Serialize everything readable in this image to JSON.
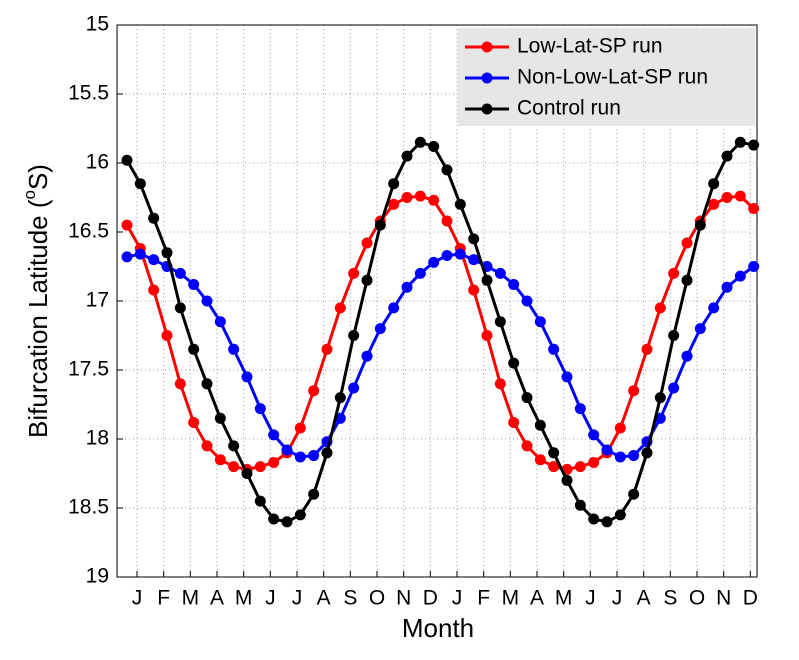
{
  "chart_data": {
    "type": "line",
    "ylabel": [
      "Bifurcation Latitude (",
      "o",
      "S)"
    ],
    "xlabel": "Month",
    "x": [
      0.375,
      0.875,
      1.375,
      1.875,
      2.375,
      2.875,
      3.375,
      3.875,
      4.375,
      4.875,
      5.375,
      5.875,
      6.375,
      6.875,
      7.375,
      7.875,
      8.375,
      8.875,
      9.375,
      9.875,
      10.375,
      10.875,
      11.375,
      11.875,
      12.375,
      12.875,
      13.375,
      13.875,
      14.375,
      14.875,
      15.375,
      15.875,
      16.375,
      16.875,
      17.375,
      17.875,
      18.375,
      18.875,
      19.375,
      19.875,
      20.375,
      20.875,
      21.375,
      21.875,
      22.375,
      22.875,
      23.375,
      23.875
    ],
    "series": [
      {
        "name": "Low-Lat-SP run",
        "color": "#ff0000",
        "values": [
          16.45,
          16.62,
          16.92,
          17.25,
          17.6,
          17.88,
          18.05,
          18.15,
          18.2,
          18.22,
          18.2,
          18.17,
          18.1,
          17.92,
          17.65,
          17.35,
          17.05,
          16.8,
          16.58,
          16.42,
          16.3,
          16.25,
          16.24,
          16.27,
          16.42,
          16.62,
          16.92,
          17.25,
          17.6,
          17.88,
          18.05,
          18.15,
          18.2,
          18.22,
          18.2,
          18.17,
          18.1,
          17.92,
          17.65,
          17.35,
          17.05,
          16.8,
          16.58,
          16.42,
          16.3,
          16.25,
          16.24,
          16.33
        ]
      },
      {
        "name": "Non-Low-Lat-SP run",
        "color": "#0000ff",
        "values": [
          16.68,
          16.66,
          16.7,
          16.75,
          16.8,
          16.88,
          17.0,
          17.15,
          17.35,
          17.55,
          17.78,
          17.97,
          18.08,
          18.13,
          18.12,
          18.02,
          17.85,
          17.63,
          17.4,
          17.2,
          17.05,
          16.9,
          16.8,
          16.72,
          16.67,
          16.66,
          16.7,
          16.75,
          16.8,
          16.88,
          17.0,
          17.15,
          17.35,
          17.55,
          17.78,
          17.97,
          18.08,
          18.13,
          18.12,
          18.02,
          17.85,
          17.63,
          17.4,
          17.2,
          17.05,
          16.9,
          16.82,
          16.75
        ]
      },
      {
        "name": "Control run",
        "color": "#000000",
        "values": [
          15.98,
          16.15,
          16.4,
          16.65,
          17.05,
          17.35,
          17.6,
          17.85,
          18.05,
          18.25,
          18.45,
          18.58,
          18.6,
          18.55,
          18.4,
          18.1,
          17.7,
          17.25,
          16.85,
          16.45,
          16.15,
          15.95,
          15.85,
          15.88,
          16.05,
          16.3,
          16.55,
          16.85,
          17.15,
          17.45,
          17.7,
          17.9,
          18.1,
          18.3,
          18.48,
          18.58,
          18.6,
          18.55,
          18.4,
          18.1,
          17.7,
          17.25,
          16.85,
          16.45,
          16.15,
          15.95,
          15.85,
          15.87
        ]
      }
    ],
    "xlim": [
      0,
      24
    ],
    "xticks": [
      {
        "value": 0.75,
        "label": "J"
      },
      {
        "value": 1.75,
        "label": "F"
      },
      {
        "value": 2.75,
        "label": "M"
      },
      {
        "value": 3.75,
        "label": "A"
      },
      {
        "value": 4.75,
        "label": "M"
      },
      {
        "value": 5.75,
        "label": "J"
      },
      {
        "value": 6.75,
        "label": "J"
      },
      {
        "value": 7.75,
        "label": "A"
      },
      {
        "value": 8.75,
        "label": "S"
      },
      {
        "value": 9.75,
        "label": "O"
      },
      {
        "value": 10.75,
        "label": "N"
      },
      {
        "value": 11.75,
        "label": "D"
      },
      {
        "value": 12.75,
        "label": "J"
      },
      {
        "value": 13.75,
        "label": "F"
      },
      {
        "value": 14.75,
        "label": "M"
      },
      {
        "value": 15.75,
        "label": "A"
      },
      {
        "value": 16.75,
        "label": "M"
      },
      {
        "value": 17.75,
        "label": "J"
      },
      {
        "value": 18.75,
        "label": "J"
      },
      {
        "value": 19.75,
        "label": "A"
      },
      {
        "value": 20.75,
        "label": "S"
      },
      {
        "value": 21.75,
        "label": "O"
      },
      {
        "value": 22.75,
        "label": "N"
      },
      {
        "value": 23.75,
        "label": "D"
      }
    ],
    "ylim": [
      15,
      19
    ],
    "y_reversed": true,
    "yticks": [
      15,
      15.5,
      16,
      16.5,
      17,
      17.5,
      18,
      18.5,
      19
    ],
    "grid": true,
    "legend": "upper right"
  }
}
